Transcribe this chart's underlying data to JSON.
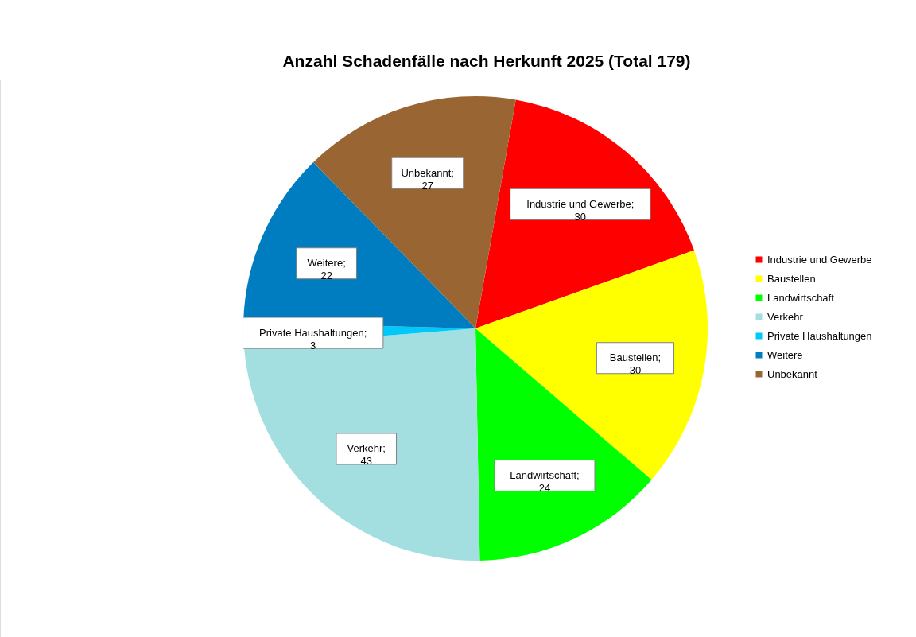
{
  "chart_data": {
    "type": "pie",
    "title": "Anzahl Schadenfälle nach Herkunft 2025   (Total 179)",
    "categories": [
      "Industrie und Gewerbe",
      "Baustellen",
      "Landwirtschaft",
      "Verkehr",
      "Private Haushaltungen",
      "Weitere",
      "Unbekannt"
    ],
    "values": [
      30,
      30,
      24,
      43,
      3,
      22,
      27
    ],
    "colors": [
      "#ff0000",
      "#ffff00",
      "#00ff00",
      "#a3dfe0",
      "#00c8f8",
      "#007dc0",
      "#996633"
    ],
    "value_labels": [
      "Industrie und Gewerbe;\n30",
      "Baustellen;\n30",
      "Landwirtschaft;\n24",
      "Verkehr;\n43",
      "Private Haushaltungen;\n3",
      "Weitere;\n22",
      "Unbekannt;\n27"
    ],
    "legend": "right"
  }
}
